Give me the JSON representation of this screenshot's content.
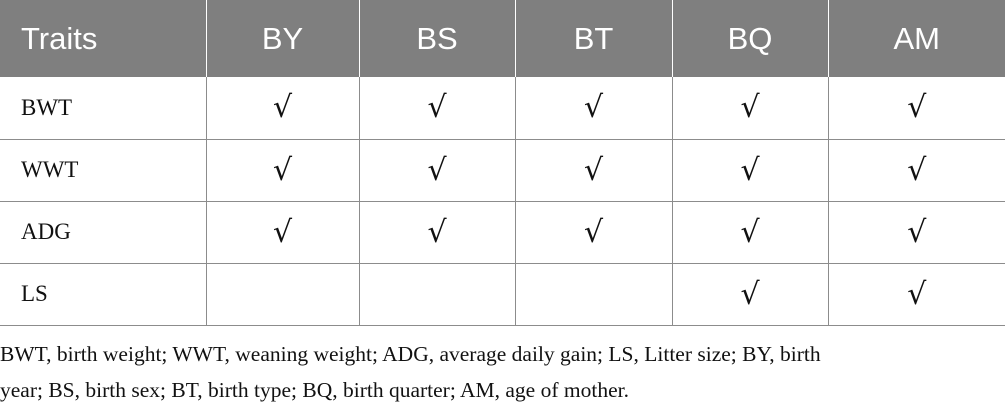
{
  "table": {
    "headers": [
      "Traits",
      "BY",
      "BS",
      "BT",
      "BQ",
      "AM"
    ],
    "rows": [
      {
        "trait": "BWT",
        "marks": [
          "√",
          "√",
          "√",
          "√",
          "√"
        ]
      },
      {
        "trait": "WWT",
        "marks": [
          "√",
          "√",
          "√",
          "√",
          "√"
        ]
      },
      {
        "trait": "ADG",
        "marks": [
          "√",
          "√",
          "√",
          "√",
          "√"
        ]
      },
      {
        "trait": "LS",
        "marks": [
          "",
          "",
          "",
          "√",
          "√"
        ]
      }
    ]
  },
  "footnote": {
    "line1": "BWT, birth weight; WWT, weaning weight; ADG, average daily gain; LS, Litter size; BY, birth",
    "line2": "year; BS, birth sex; BT, birth type; BQ, birth quarter; AM, age of mother."
  }
}
